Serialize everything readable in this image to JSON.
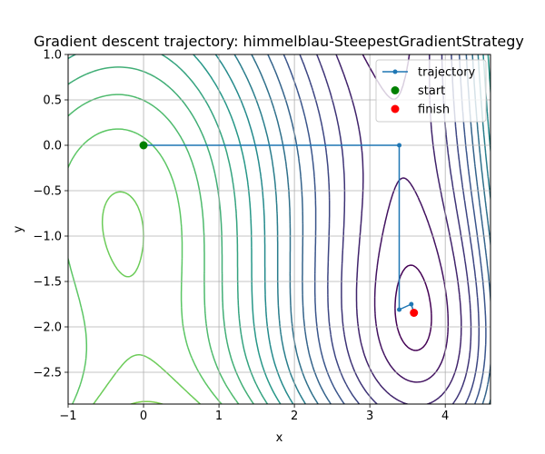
{
  "chart_data": {
    "type": "line",
    "title": "Gradient descent trajectory: himmelblau-SteepestGradientStrategy",
    "xlabel": "x",
    "ylabel": "y",
    "xlim": [
      -1,
      4.6
    ],
    "ylim": [
      -2.85,
      1.0
    ],
    "x_ticks": [
      -1,
      0,
      1,
      2,
      3,
      4
    ],
    "x_tick_labels": [
      "−1",
      "0",
      "1",
      "2",
      "3",
      "4"
    ],
    "y_ticks": [
      1.0,
      0.5,
      0.0,
      -0.5,
      -1.0,
      -1.5,
      -2.0,
      -2.5
    ],
    "y_tick_labels": [
      "1.0",
      "0.5",
      "0.0",
      "−0.5",
      "−1.0",
      "−1.5",
      "−2.0",
      "−2.5"
    ],
    "grid": true,
    "legend_position": "top-right",
    "contour": {
      "function": "himmelblau",
      "levels": [
        3,
        12,
        24,
        36,
        48,
        60,
        72,
        84,
        96,
        108,
        120,
        132,
        144,
        156,
        168,
        180,
        192,
        204,
        216,
        228
      ],
      "colormap": [
        "#440154",
        "#3b528b",
        "#21918c",
        "#5ec962",
        "#b5de2b"
      ]
    },
    "series": [
      {
        "name": "trajectory",
        "color": "#1f77b4",
        "x": [
          0.0,
          3.39,
          3.39,
          3.55,
          3.585
        ],
        "y": [
          0.0,
          0.0,
          -1.81,
          -1.75,
          -1.845
        ]
      }
    ],
    "markers": [
      {
        "name": "start",
        "color": "#008000",
        "x": 0.0,
        "y": 0.0
      },
      {
        "name": "finish",
        "color": "#ff0000",
        "x": 3.585,
        "y": -1.845
      }
    ]
  }
}
